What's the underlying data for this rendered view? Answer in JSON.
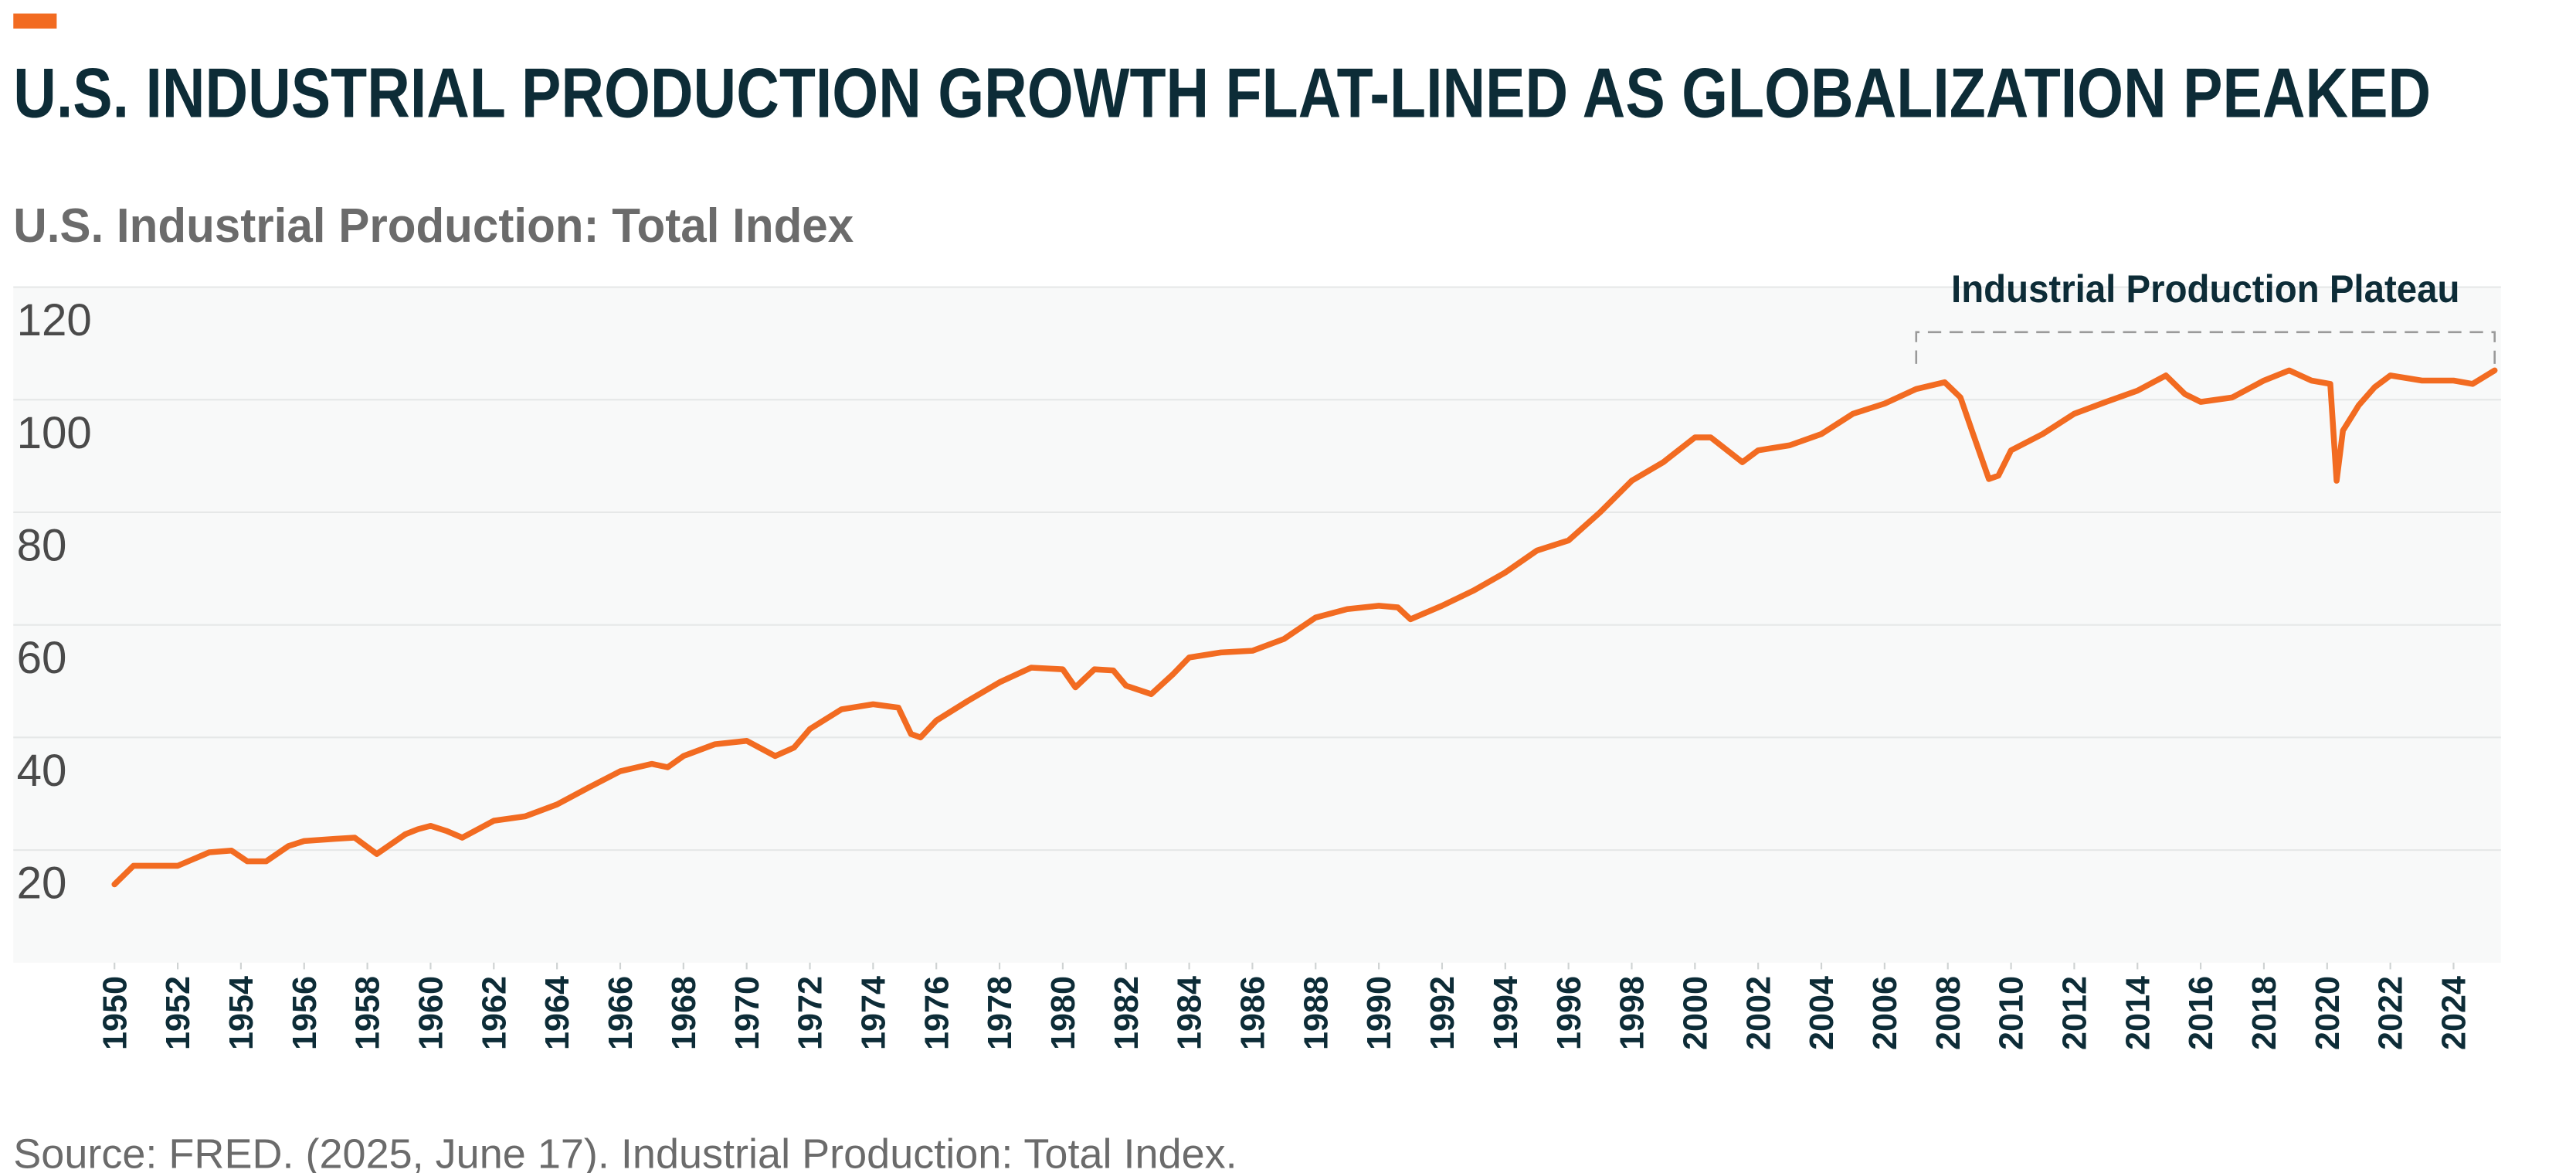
{
  "chart_data": {
    "type": "line",
    "title": "U.S. INDUSTRIAL PRODUCTION GROWTH FLAT-LINED AS GLOBALIZATION PEAKED",
    "subtitle": "U.S. Industrial Production: Total Index",
    "source": "Source: FRED. (2025, June 17). Industrial Production: Total Index.",
    "annotation": {
      "text": "Industrial Production Plateau",
      "x": [
        2007,
        2025.3
      ]
    },
    "color": "#f26b21",
    "grid": true,
    "xlim": [
      1946.8,
      2025.5
    ],
    "ylim": [
      0,
      120
    ],
    "yticks": [
      20,
      40,
      60,
      80,
      100,
      120
    ],
    "xticks": [
      1950,
      1952,
      1954,
      1956,
      1958,
      1960,
      1962,
      1964,
      1966,
      1968,
      1970,
      1972,
      1974,
      1976,
      1978,
      1980,
      1982,
      1984,
      1986,
      1988,
      1990,
      1992,
      1994,
      1996,
      1998,
      2000,
      2002,
      2004,
      2006,
      2008,
      2010,
      2012,
      2014,
      2016,
      2018,
      2020,
      2022,
      2024
    ],
    "x": [
      1950,
      1950.6,
      1952,
      1953,
      1953.7,
      1954.2,
      1954.8,
      1955.5,
      1956,
      1957,
      1957.6,
      1958.3,
      1959.2,
      1959.6,
      1960,
      1960.5,
      1961,
      1962,
      1963,
      1964,
      1965,
      1966,
      1967,
      1967.5,
      1968,
      1969,
      1970,
      1970.9,
      1971.5,
      1972,
      1973,
      1974,
      1974.8,
      1975.2,
      1975.5,
      1976,
      1977,
      1978,
      1979,
      1980,
      1980.4,
      1981,
      1981.6,
      1982,
      1982.8,
      1983.5,
      1984,
      1985,
      1986,
      1987,
      1988,
      1989,
      1990,
      1990.6,
      1991,
      1992,
      1993,
      1994,
      1995,
      1996,
      1997,
      1998,
      1999,
      2000,
      2000.5,
      2001.5,
      2002,
      2003,
      2004,
      2005,
      2006,
      2007,
      2007.9,
      2008.4,
      2008.8,
      2009.3,
      2009.6,
      2010,
      2011,
      2012,
      2013,
      2014,
      2014.9,
      2015.5,
      2016,
      2017,
      2018,
      2018.8,
      2019.5,
      2020.1,
      2020.3,
      2020.5,
      2021,
      2021.5,
      2022,
      2023,
      2024,
      2024.6,
      2025.3
    ],
    "values": [
      13.9,
      17.2,
      17.2,
      19.6,
      19.9,
      18,
      18,
      20.7,
      21.6,
      22,
      22.2,
      19.3,
      22.8,
      23.7,
      24.3,
      23.4,
      22.2,
      25.2,
      26,
      28.1,
      31.1,
      34,
      35.3,
      34.7,
      36.7,
      38.8,
      39.4,
      36.7,
      38.2,
      41.5,
      45,
      45.9,
      45.3,
      40.6,
      40,
      43,
      46.5,
      49.8,
      52.4,
      52.1,
      48.9,
      52.1,
      51.9,
      49.2,
      47.7,
      51.3,
      54.2,
      55.1,
      55.4,
      57.5,
      61.3,
      62.8,
      63.4,
      63.1,
      61,
      63.4,
      66.1,
      69.3,
      73.2,
      75,
      80,
      85.6,
      88.9,
      93.3,
      93.3,
      88.9,
      91,
      91.9,
      93.9,
      97.5,
      99.3,
      101.9,
      103.1,
      100.4,
      93.9,
      85.9,
      86.5,
      91,
      93.9,
      97.5,
      99.6,
      101.6,
      104.3,
      101,
      99.6,
      100.4,
      103.4,
      105.2,
      103.4,
      102.8,
      85.6,
      94.5,
      99,
      102.2,
      104.3,
      103.4,
      103.4,
      102.8,
      105.2
    ]
  }
}
